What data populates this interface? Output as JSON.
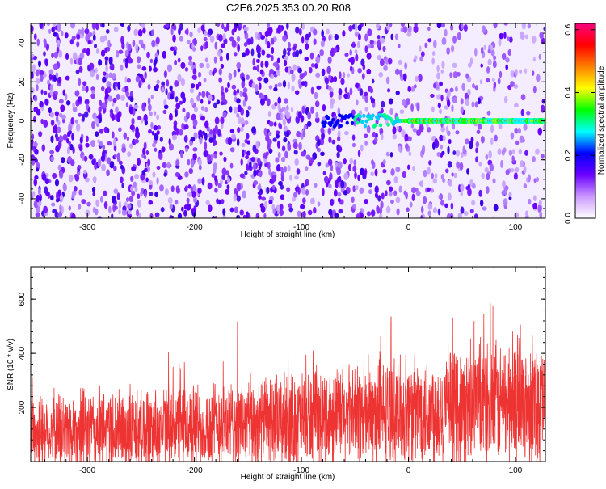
{
  "title": "C2E6.2025.353.00.20.R08",
  "chart_data": [
    {
      "type": "heatmap",
      "xlabel": "Height of straight line (km)",
      "ylabel": "Frequency (Hz)",
      "xlim": [
        -353,
        128
      ],
      "ylim": [
        -50,
        50
      ],
      "xticks": [
        -300,
        -200,
        -100,
        0,
        100
      ],
      "yticks": [
        -40,
        -20,
        0,
        20,
        40
      ],
      "xticklabels": [
        "-300",
        "-200",
        "-100",
        "0",
        "100"
      ],
      "yticklabels": [
        "-40",
        "-20",
        "0",
        "20",
        "40"
      ],
      "signal_band": {
        "start_x": -80,
        "center_frequency": 0,
        "half_width": 1.5
      },
      "colorbar": {
        "label": "Normalized spectral amplitude",
        "range": [
          0.0,
          0.62
        ],
        "ticks": [
          0.0,
          0.2,
          0.4,
          0.6
        ],
        "ticklabels": [
          "0.0",
          "0.2",
          "0.4",
          "0.6"
        ],
        "colors": [
          "#ffffff",
          "#cc99ff",
          "#6a00ff",
          "#0000ff",
          "#00ffff",
          "#00ff00",
          "#ffff00",
          "#ff8000",
          "#ff0000",
          "#ff0080"
        ]
      }
    },
    {
      "type": "line",
      "xlabel": "Height of straight line (km)",
      "ylabel": "SNR (10 * v/v)",
      "xlim": [
        -353,
        128
      ],
      "ylim": [
        0,
        720
      ],
      "xticks": [
        -300,
        -200,
        -100,
        0,
        100
      ],
      "yticks": [
        200,
        400,
        600
      ],
      "xticklabels": [
        "-300",
        "-200",
        "-100",
        "0",
        "100"
      ],
      "yticklabels": [
        "200",
        "400",
        "600"
      ],
      "series": [
        {
          "color": "#ee3333",
          "baseline_start": 110,
          "baseline_end": 230,
          "noise_envelope_start": 140,
          "noise_envelope_end": 230
        }
      ]
    }
  ]
}
